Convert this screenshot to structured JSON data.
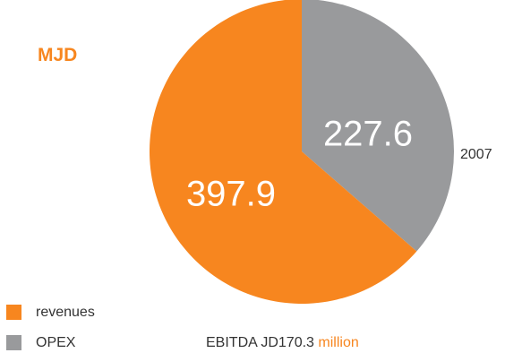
{
  "unit_label": "MJD",
  "year_label": "2007",
  "chart_data": {
    "type": "pie",
    "categories": [
      "OPEX",
      "revenues"
    ],
    "values": [
      227.6,
      397.9
    ],
    "colors": [
      "#999a9c",
      "#f7861f"
    ],
    "value_labels": [
      "227.6",
      "397.9"
    ],
    "legend_position": "bottom-left"
  },
  "legend": [
    {
      "label": "revenues",
      "color": "#f7861f"
    },
    {
      "label": "OPEX",
      "color": "#999a9c"
    }
  ],
  "note": {
    "text": "EBITDA JD170.3",
    "unit": "million",
    "unit_color": "#f7861f"
  }
}
